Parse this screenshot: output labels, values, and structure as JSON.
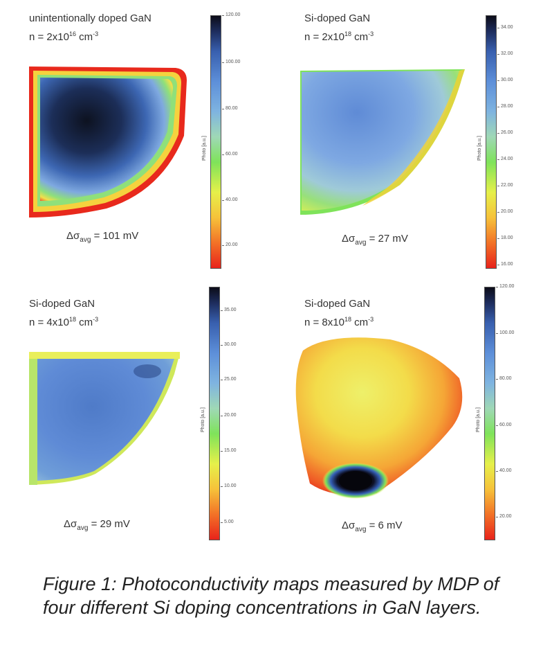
{
  "panels": [
    {
      "title_line1": "unintentionally doped GaN",
      "conc_prefix": "n = 2x10",
      "conc_exp": "16",
      "conc_unit": " cm",
      "conc_unit_exp": "-3",
      "sigma_prefix": "Δσ",
      "sigma_sub": "avg",
      "sigma_value": " = 101 mV",
      "colorbar_label": "Photo [a.u.]",
      "colorbar_ticks": [
        "120.00",
        "100.00",
        "80.00",
        "60.00",
        "40.00",
        "20.00"
      ]
    },
    {
      "title_line1": "Si-doped GaN",
      "conc_prefix": "n = 2x10",
      "conc_exp": "18",
      "conc_unit": " cm",
      "conc_unit_exp": "-3",
      "sigma_prefix": "Δσ",
      "sigma_sub": "avg",
      "sigma_value": " = 27 mV",
      "colorbar_label": "Photo [a.u.]",
      "colorbar_ticks": [
        "34.00",
        "32.00",
        "30.00",
        "28.00",
        "26.00",
        "24.00",
        "22.00",
        "20.00",
        "18.00",
        "16.00"
      ]
    },
    {
      "title_line1": "Si-doped GaN",
      "conc_prefix": "n = 4x10",
      "conc_exp": "18",
      "conc_unit": " cm",
      "conc_unit_exp": "-3",
      "sigma_prefix": "Δσ",
      "sigma_sub": "avg",
      "sigma_value": " = 29 mV",
      "colorbar_label": "Photo [a.u.]",
      "colorbar_ticks": [
        "35.00",
        "30.00",
        "25.00",
        "20.00",
        "15.00",
        "10.00",
        "5.00"
      ]
    },
    {
      "title_line1": "Si-doped GaN",
      "conc_prefix": "n = 8x10",
      "conc_exp": "18",
      "conc_unit": " cm",
      "conc_unit_exp": "-3",
      "sigma_prefix": "Δσ",
      "sigma_sub": "avg",
      "sigma_value": " = 6 mV",
      "colorbar_label": "Photo [a.u.]",
      "colorbar_ticks": [
        "120.00",
        "100.00",
        "80.00",
        "60.00",
        "40.00",
        "20.00"
      ]
    }
  ],
  "caption": "Figure 1: Photoconductivity maps measured by MDP of four different Si doping concentrations in GaN layers."
}
